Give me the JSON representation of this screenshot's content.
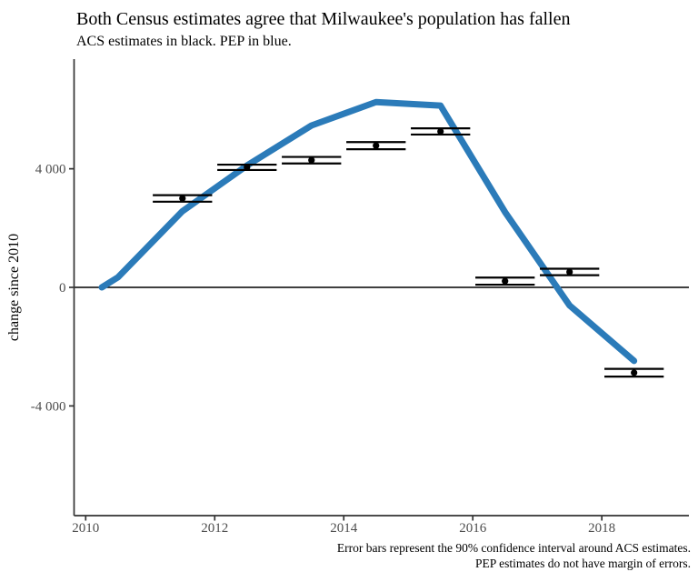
{
  "chart_data": {
    "type": "line",
    "title": "Both Census estimates agree that Milwaukee's population has fallen",
    "subtitle": "ACS estimates in black. PEP in blue.",
    "caption": [
      "Error bars represent the 90% confidence interval around ACS estimates.",
      "PEP estimates do not have margin of errors."
    ],
    "xlabel": "",
    "ylabel": "change since 2010",
    "xlim": [
      2009.82,
      2019.35
    ],
    "ylim": [
      -7700,
      7700
    ],
    "grid": false,
    "zero_line": true,
    "legend": "none",
    "x_ticks": [
      {
        "value": 2010,
        "label": "2010"
      },
      {
        "value": 2012,
        "label": "2012"
      },
      {
        "value": 2014,
        "label": "2014"
      },
      {
        "value": 2016,
        "label": "2016"
      },
      {
        "value": 2018,
        "label": "2018"
      }
    ],
    "y_ticks": [
      {
        "value": 4000,
        "label": "4 000"
      },
      {
        "value": 0,
        "label": "0"
      },
      {
        "value": -4000,
        "label": "-4 000"
      }
    ],
    "series": [
      {
        "name": "PEP",
        "type": "line",
        "color": "#2b7bb9",
        "x": [
          2010.25,
          2010.5,
          2011.5,
          2012.5,
          2013.5,
          2014.5,
          2015.5,
          2016.5,
          2017.5,
          2018.5
        ],
        "values": [
          0,
          340,
          2570,
          4110,
          5460,
          6250,
          6130,
          2540,
          -610,
          -2480
        ]
      },
      {
        "name": "ACS",
        "type": "point-errorbar",
        "color": "#000000",
        "errorbar_width_years": 0.92,
        "x": [
          2011.5,
          2012.5,
          2013.5,
          2014.5,
          2015.5,
          2016.5,
          2017.5,
          2018.5
        ],
        "values": [
          3000,
          4050,
          4290,
          4780,
          5260,
          210,
          520,
          -2880
        ],
        "moe": [
          110,
          90,
          110,
          120,
          105,
          120,
          110,
          130
        ]
      }
    ]
  },
  "colors": {
    "pep_blue": "#2b7bb9",
    "acs_black": "#000000",
    "axis": "#333333",
    "tick_label": "#4d4d4d"
  }
}
